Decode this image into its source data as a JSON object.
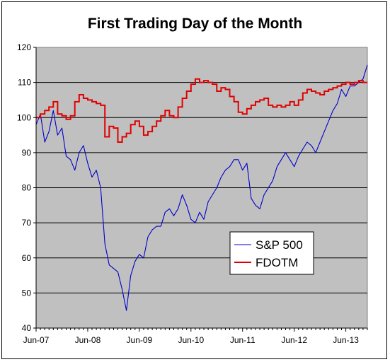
{
  "chart_data": {
    "type": "line",
    "title": "First Trading Day of the Month",
    "xlabel": "",
    "ylabel": "",
    "x_ticks": [
      "Jun-07",
      "Jun-08",
      "Jun-09",
      "Jun-10",
      "Jun-11",
      "Jun-12",
      "Jun-13"
    ],
    "x_range": [
      "2007-06",
      "2013-11"
    ],
    "ylim": [
      40,
      120
    ],
    "y_ticks": [
      40,
      50,
      60,
      70,
      80,
      90,
      100,
      110,
      120
    ],
    "grid": "horizontal",
    "plot_background": "#c0c0c0",
    "legend_position": "lower-right-center",
    "series": [
      {
        "name": "S&P 500",
        "color": "#0000cc",
        "style": "thin-line",
        "points": [
          [
            "2007-06-01",
            98
          ],
          [
            "2007-07-01",
            101
          ],
          [
            "2007-08-01",
            93
          ],
          [
            "2007-09-01",
            96
          ],
          [
            "2007-10-01",
            102
          ],
          [
            "2007-11-01",
            95
          ],
          [
            "2007-12-01",
            97
          ],
          [
            "2008-01-01",
            89
          ],
          [
            "2008-02-01",
            88
          ],
          [
            "2008-03-01",
            85
          ],
          [
            "2008-04-01",
            90
          ],
          [
            "2008-05-01",
            92
          ],
          [
            "2008-06-01",
            87
          ],
          [
            "2008-07-01",
            83
          ],
          [
            "2008-08-01",
            85
          ],
          [
            "2008-09-01",
            80
          ],
          [
            "2008-10-01",
            64
          ],
          [
            "2008-11-01",
            58
          ],
          [
            "2008-12-01",
            57
          ],
          [
            "2009-01-01",
            56
          ],
          [
            "2009-02-01",
            51
          ],
          [
            "2009-03-01",
            45
          ],
          [
            "2009-04-01",
            55
          ],
          [
            "2009-05-01",
            59
          ],
          [
            "2009-06-01",
            61
          ],
          [
            "2009-07-01",
            60
          ],
          [
            "2009-08-01",
            66
          ],
          [
            "2009-09-01",
            68
          ],
          [
            "2009-10-01",
            69
          ],
          [
            "2009-11-01",
            69
          ],
          [
            "2009-12-01",
            73
          ],
          [
            "2010-01-01",
            74
          ],
          [
            "2010-02-01",
            72
          ],
          [
            "2010-03-01",
            74
          ],
          [
            "2010-04-01",
            78
          ],
          [
            "2010-05-01",
            75
          ],
          [
            "2010-06-01",
            71
          ],
          [
            "2010-07-01",
            70
          ],
          [
            "2010-08-01",
            73
          ],
          [
            "2010-09-01",
            71
          ],
          [
            "2010-10-01",
            76
          ],
          [
            "2010-11-01",
            78
          ],
          [
            "2010-12-01",
            80
          ],
          [
            "2011-01-01",
            83
          ],
          [
            "2011-02-01",
            85
          ],
          [
            "2011-03-01",
            86
          ],
          [
            "2011-04-01",
            88
          ],
          [
            "2011-05-01",
            88
          ],
          [
            "2011-06-01",
            85
          ],
          [
            "2011-07-01",
            87
          ],
          [
            "2011-08-01",
            77
          ],
          [
            "2011-09-01",
            75
          ],
          [
            "2011-10-01",
            74
          ],
          [
            "2011-11-01",
            78
          ],
          [
            "2011-12-01",
            80
          ],
          [
            "2012-01-01",
            82
          ],
          [
            "2012-02-01",
            86
          ],
          [
            "2012-03-01",
            88
          ],
          [
            "2012-04-01",
            90
          ],
          [
            "2012-05-01",
            88
          ],
          [
            "2012-06-01",
            86
          ],
          [
            "2012-07-01",
            89
          ],
          [
            "2012-08-01",
            91
          ],
          [
            "2012-09-01",
            93
          ],
          [
            "2012-10-01",
            92
          ],
          [
            "2012-11-01",
            90
          ],
          [
            "2012-12-01",
            93
          ],
          [
            "2013-01-01",
            96
          ],
          [
            "2013-02-01",
            99
          ],
          [
            "2013-03-01",
            102
          ],
          [
            "2013-04-01",
            104
          ],
          [
            "2013-05-01",
            108
          ],
          [
            "2013-06-01",
            106
          ],
          [
            "2013-07-01",
            109
          ],
          [
            "2013-08-01",
            109
          ],
          [
            "2013-09-01",
            110
          ],
          [
            "2013-10-01",
            111
          ],
          [
            "2013-11-01",
            115
          ]
        ]
      },
      {
        "name": "FDOTM",
        "color": "#e00000",
        "style": "step-line",
        "points": [
          [
            "2007-06-01",
            100
          ],
          [
            "2007-07-01",
            101
          ],
          [
            "2007-08-01",
            102
          ],
          [
            "2007-09-01",
            103
          ],
          [
            "2007-10-01",
            104.5
          ],
          [
            "2007-11-01",
            101
          ],
          [
            "2007-12-01",
            100.5
          ],
          [
            "2008-01-01",
            99.5
          ],
          [
            "2008-02-01",
            100.5
          ],
          [
            "2008-03-01",
            104.5
          ],
          [
            "2008-04-01",
            106.5
          ],
          [
            "2008-05-01",
            105.5
          ],
          [
            "2008-06-01",
            105
          ],
          [
            "2008-07-01",
            104.5
          ],
          [
            "2008-08-01",
            104
          ],
          [
            "2008-09-01",
            103.5
          ],
          [
            "2008-10-01",
            94.5
          ],
          [
            "2008-11-01",
            97.5
          ],
          [
            "2008-12-01",
            97
          ],
          [
            "2009-01-01",
            93
          ],
          [
            "2009-02-01",
            94.5
          ],
          [
            "2009-03-01",
            95.5
          ],
          [
            "2009-04-01",
            98
          ],
          [
            "2009-05-01",
            99
          ],
          [
            "2009-06-01",
            97.5
          ],
          [
            "2009-07-01",
            95
          ],
          [
            "2009-08-01",
            96
          ],
          [
            "2009-09-01",
            97.5
          ],
          [
            "2009-10-01",
            99
          ],
          [
            "2009-11-01",
            100.5
          ],
          [
            "2009-12-01",
            102
          ],
          [
            "2010-01-01",
            100.5
          ],
          [
            "2010-02-01",
            100
          ],
          [
            "2010-03-01",
            103
          ],
          [
            "2010-04-01",
            105.5
          ],
          [
            "2010-05-01",
            107.5
          ],
          [
            "2010-06-01",
            109.5
          ],
          [
            "2010-07-01",
            111
          ],
          [
            "2010-08-01",
            110
          ],
          [
            "2010-09-01",
            110.5
          ],
          [
            "2010-10-01",
            110
          ],
          [
            "2010-11-01",
            109.5
          ],
          [
            "2010-12-01",
            107.5
          ],
          [
            "2011-01-01",
            108.5
          ],
          [
            "2011-02-01",
            108
          ],
          [
            "2011-03-01",
            106
          ],
          [
            "2011-04-01",
            104.5
          ],
          [
            "2011-05-01",
            101.5
          ],
          [
            "2011-06-01",
            101
          ],
          [
            "2011-07-01",
            102.5
          ],
          [
            "2011-08-01",
            103.5
          ],
          [
            "2011-09-01",
            104.5
          ],
          [
            "2011-10-01",
            105
          ],
          [
            "2011-11-01",
            105.5
          ],
          [
            "2011-12-01",
            103.5
          ],
          [
            "2012-01-01",
            103
          ],
          [
            "2012-02-01",
            103.5
          ],
          [
            "2012-03-01",
            103
          ],
          [
            "2012-04-01",
            103.5
          ],
          [
            "2012-05-01",
            104.5
          ],
          [
            "2012-06-01",
            103.5
          ],
          [
            "2012-07-01",
            105
          ],
          [
            "2012-08-01",
            107
          ],
          [
            "2012-09-01",
            108
          ],
          [
            "2012-10-01",
            107.5
          ],
          [
            "2012-11-01",
            107
          ],
          [
            "2012-12-01",
            106.5
          ],
          [
            "2013-01-01",
            107.5
          ],
          [
            "2013-02-01",
            108
          ],
          [
            "2013-03-01",
            108.5
          ],
          [
            "2013-04-01",
            109
          ],
          [
            "2013-05-01",
            109.5
          ],
          [
            "2013-06-01",
            110
          ],
          [
            "2013-07-01",
            109.5
          ],
          [
            "2013-08-01",
            110
          ],
          [
            "2013-09-01",
            110.5
          ],
          [
            "2013-10-01",
            110
          ],
          [
            "2013-11-01",
            110
          ]
        ]
      }
    ]
  }
}
